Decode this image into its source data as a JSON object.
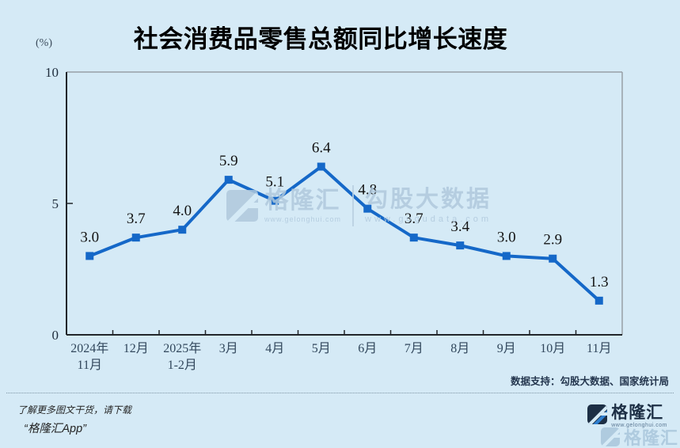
{
  "header": {
    "title": "社会消费品零售总额同比增长速度",
    "unit_label": "(%)"
  },
  "chart_data": {
    "type": "line",
    "title": "社会消费品零售总额同比增长速度",
    "ylabel": "(%)",
    "ylim": [
      0,
      10
    ],
    "yticks": [
      0,
      5,
      10
    ],
    "categories": [
      [
        "2024年",
        "11月"
      ],
      [
        "12月"
      ],
      [
        "2025年",
        "1-2月"
      ],
      [
        "3月"
      ],
      [
        "4月"
      ],
      [
        "5月"
      ],
      [
        "6月"
      ],
      [
        "7月"
      ],
      [
        "8月"
      ],
      [
        "9月"
      ],
      [
        "10月"
      ],
      [
        "11月"
      ]
    ],
    "values": [
      3.0,
      3.7,
      4.0,
      5.9,
      5.1,
      6.4,
      4.8,
      3.7,
      3.4,
      3.0,
      2.9,
      1.3
    ],
    "line_color": "#1568c8",
    "marker": "square",
    "grid": false,
    "legend": "none",
    "value_label_color": "#131313",
    "axis_dark_color": "#22262a",
    "axis_light_color": "#98a0a6",
    "tick_label_color": "#31475c"
  },
  "watermark_center": {
    "brand_name": "格隆汇",
    "brand_url": "www.gelonghui.com",
    "data_name": "勾股大数据",
    "data_url": "www.gogudata.com"
  },
  "footer": {
    "credit": "数据支持：勾股大数据、国家统计局",
    "promo_line1": "了解更多图文干货，请下载",
    "promo_line2": "“格隆汇App”",
    "logo_name": "格隆汇",
    "logo_url": "www.gelonghui.com",
    "logo_shadow_name": "格隆汇"
  }
}
